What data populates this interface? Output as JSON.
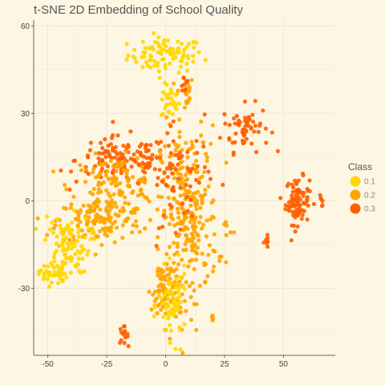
{
  "chart_data": {
    "type": "scatter",
    "title": "t-SNE 2D Embedding of School Quality",
    "xlabel": "",
    "ylabel": "",
    "xlim": [
      -56,
      72
    ],
    "ylim": [
      -53,
      62
    ],
    "x_ticks": [
      -50,
      -25,
      0,
      25,
      50
    ],
    "y_ticks": [
      -30,
      0,
      30,
      60
    ],
    "grid": true,
    "legend": {
      "title": "Class",
      "position": "right",
      "entries": [
        {
          "label": "0.1",
          "color": "#FFD700"
        },
        {
          "label": "0.2",
          "color": "#FFA500"
        },
        {
          "label": "0.3",
          "color": "#FF5F00"
        }
      ]
    },
    "clusters": [
      {
        "class": "0.1",
        "cx": 0,
        "cy": 50,
        "sx": 8,
        "sy": 3,
        "n": 90
      },
      {
        "class": "0.1",
        "cx": 2,
        "cy": 34,
        "sx": 2,
        "sy": 3,
        "n": 30
      },
      {
        "class": "0.2",
        "cx": 8,
        "cy": 37,
        "sx": 2,
        "sy": 3,
        "n": 15
      },
      {
        "class": "0.3",
        "cx": 8,
        "cy": 40,
        "sx": 1,
        "sy": 2,
        "n": 10
      },
      {
        "class": "0.3",
        "cx": 34,
        "cy": 25,
        "sx": 5,
        "sy": 4,
        "n": 60
      },
      {
        "class": "0.3",
        "cx": 56,
        "cy": 0,
        "sx": 2.5,
        "sy": 4,
        "n": 90
      },
      {
        "class": "0.3",
        "cx": 66,
        "cy": 0,
        "sx": 0.6,
        "sy": 1,
        "n": 6
      },
      {
        "class": "0.3",
        "cx": 43,
        "cy": -14,
        "sx": 0.8,
        "sy": 1,
        "n": 8
      },
      {
        "class": "0.3",
        "cx": -18,
        "cy": -46,
        "sx": 1,
        "sy": 1.5,
        "n": 15
      },
      {
        "class": "0.2",
        "cx": 20,
        "cy": -41,
        "sx": 0.5,
        "sy": 1,
        "n": 5
      },
      {
        "class": "0.3",
        "cx": -18,
        "cy": 14,
        "sx": 10,
        "sy": 4,
        "n": 130
      },
      {
        "class": "0.2",
        "cx": -22,
        "cy": 5,
        "sx": 9,
        "sy": 5,
        "n": 130
      },
      {
        "class": "0.2",
        "cx": -28,
        "cy": -7,
        "sx": 9,
        "sy": 4,
        "n": 120
      },
      {
        "class": "0.1",
        "cx": -42,
        "cy": -15,
        "sx": 5,
        "sy": 5,
        "n": 90
      },
      {
        "class": "0.1",
        "cx": -48,
        "cy": -25,
        "sx": 3,
        "sy": 2,
        "n": 40
      },
      {
        "class": "0.2",
        "cx": 10,
        "cy": -5,
        "sx": 6,
        "sy": 15,
        "n": 260
      },
      {
        "class": "0.3",
        "cx": 5,
        "cy": 8,
        "sx": 7,
        "sy": 8,
        "n": 70
      },
      {
        "class": "0.2",
        "cx": 0,
        "cy": -30,
        "sx": 3,
        "sy": 6,
        "n": 80
      },
      {
        "class": "0.1",
        "cx": 3,
        "cy": -36,
        "sx": 3,
        "sy": 6,
        "n": 70
      },
      {
        "class": "0.2",
        "cx": 26,
        "cy": -10,
        "sx": 1,
        "sy": 2,
        "n": 6
      }
    ]
  }
}
